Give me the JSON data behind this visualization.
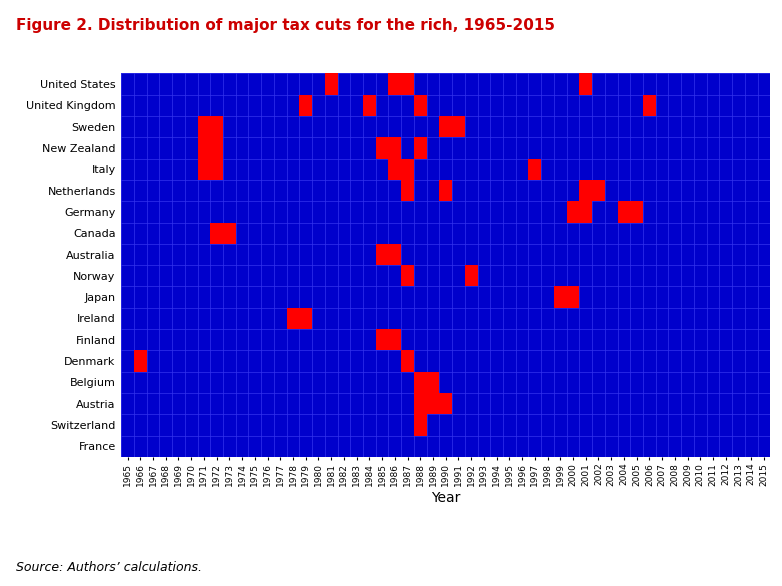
{
  "title": "Figure 2. Distribution of major tax cuts for the rich, 1965-2015",
  "xlabel": "Year",
  "ylabel": "",
  "source_text": "Source: Authors’ calculations.",
  "countries": [
    "United States",
    "United Kingdom",
    "Sweden",
    "New Zealand",
    "Italy",
    "Netherlands",
    "Germany",
    "Canada",
    "Australia",
    "Norway",
    "Japan",
    "Ireland",
    "Finland",
    "Denmark",
    "Belgium",
    "Austria",
    "Switzerland",
    "France"
  ],
  "years": [
    1965,
    1966,
    1967,
    1968,
    1969,
    1970,
    1971,
    1972,
    1973,
    1974,
    1975,
    1976,
    1977,
    1978,
    1979,
    1980,
    1981,
    1982,
    1983,
    1984,
    1985,
    1986,
    1987,
    1988,
    1989,
    1990,
    1991,
    1992,
    1993,
    1994,
    1995,
    1996,
    1997,
    1998,
    1999,
    2000,
    2001,
    2002,
    2003,
    2004,
    2005,
    2006,
    2007,
    2008,
    2009,
    2010,
    2011,
    2012,
    2013,
    2014,
    2015
  ],
  "red_cells": [
    [
      "United States",
      1981
    ],
    [
      "United States",
      1986
    ],
    [
      "United States",
      1987
    ],
    [
      "United States",
      2001
    ],
    [
      "United Kingdom",
      1979
    ],
    [
      "United Kingdom",
      1984
    ],
    [
      "United Kingdom",
      1988
    ],
    [
      "United Kingdom",
      2006
    ],
    [
      "Sweden",
      1971
    ],
    [
      "Sweden",
      1972
    ],
    [
      "Sweden",
      1990
    ],
    [
      "Sweden",
      1991
    ],
    [
      "New Zealand",
      1971
    ],
    [
      "New Zealand",
      1972
    ],
    [
      "New Zealand",
      1985
    ],
    [
      "New Zealand",
      1986
    ],
    [
      "New Zealand",
      1988
    ],
    [
      "Italy",
      1971
    ],
    [
      "Italy",
      1972
    ],
    [
      "Italy",
      1986
    ],
    [
      "Italy",
      1987
    ],
    [
      "Italy",
      1997
    ],
    [
      "Netherlands",
      1987
    ],
    [
      "Netherlands",
      1990
    ],
    [
      "Netherlands",
      2001
    ],
    [
      "Netherlands",
      2002
    ],
    [
      "Germany",
      2000
    ],
    [
      "Germany",
      2001
    ],
    [
      "Germany",
      2004
    ],
    [
      "Germany",
      2005
    ],
    [
      "Canada",
      1972
    ],
    [
      "Canada",
      1973
    ],
    [
      "Australia",
      1985
    ],
    [
      "Australia",
      1986
    ],
    [
      "Norway",
      1987
    ],
    [
      "Norway",
      1992
    ],
    [
      "Japan",
      1999
    ],
    [
      "Japan",
      2000
    ],
    [
      "Ireland",
      1978
    ],
    [
      "Ireland",
      1979
    ],
    [
      "Finland",
      1985
    ],
    [
      "Finland",
      1986
    ],
    [
      "Denmark",
      1966
    ],
    [
      "Denmark",
      1987
    ],
    [
      "Belgium",
      1988
    ],
    [
      "Belgium",
      1989
    ],
    [
      "Austria",
      1988
    ],
    [
      "Austria",
      1989
    ],
    [
      "Austria",
      1990
    ],
    [
      "Switzerland",
      1988
    ]
  ],
  "bg_color": "#0000CC",
  "red_color": "#FF0000",
  "grid_color": "#3333EE",
  "title_color": "#CC0000"
}
